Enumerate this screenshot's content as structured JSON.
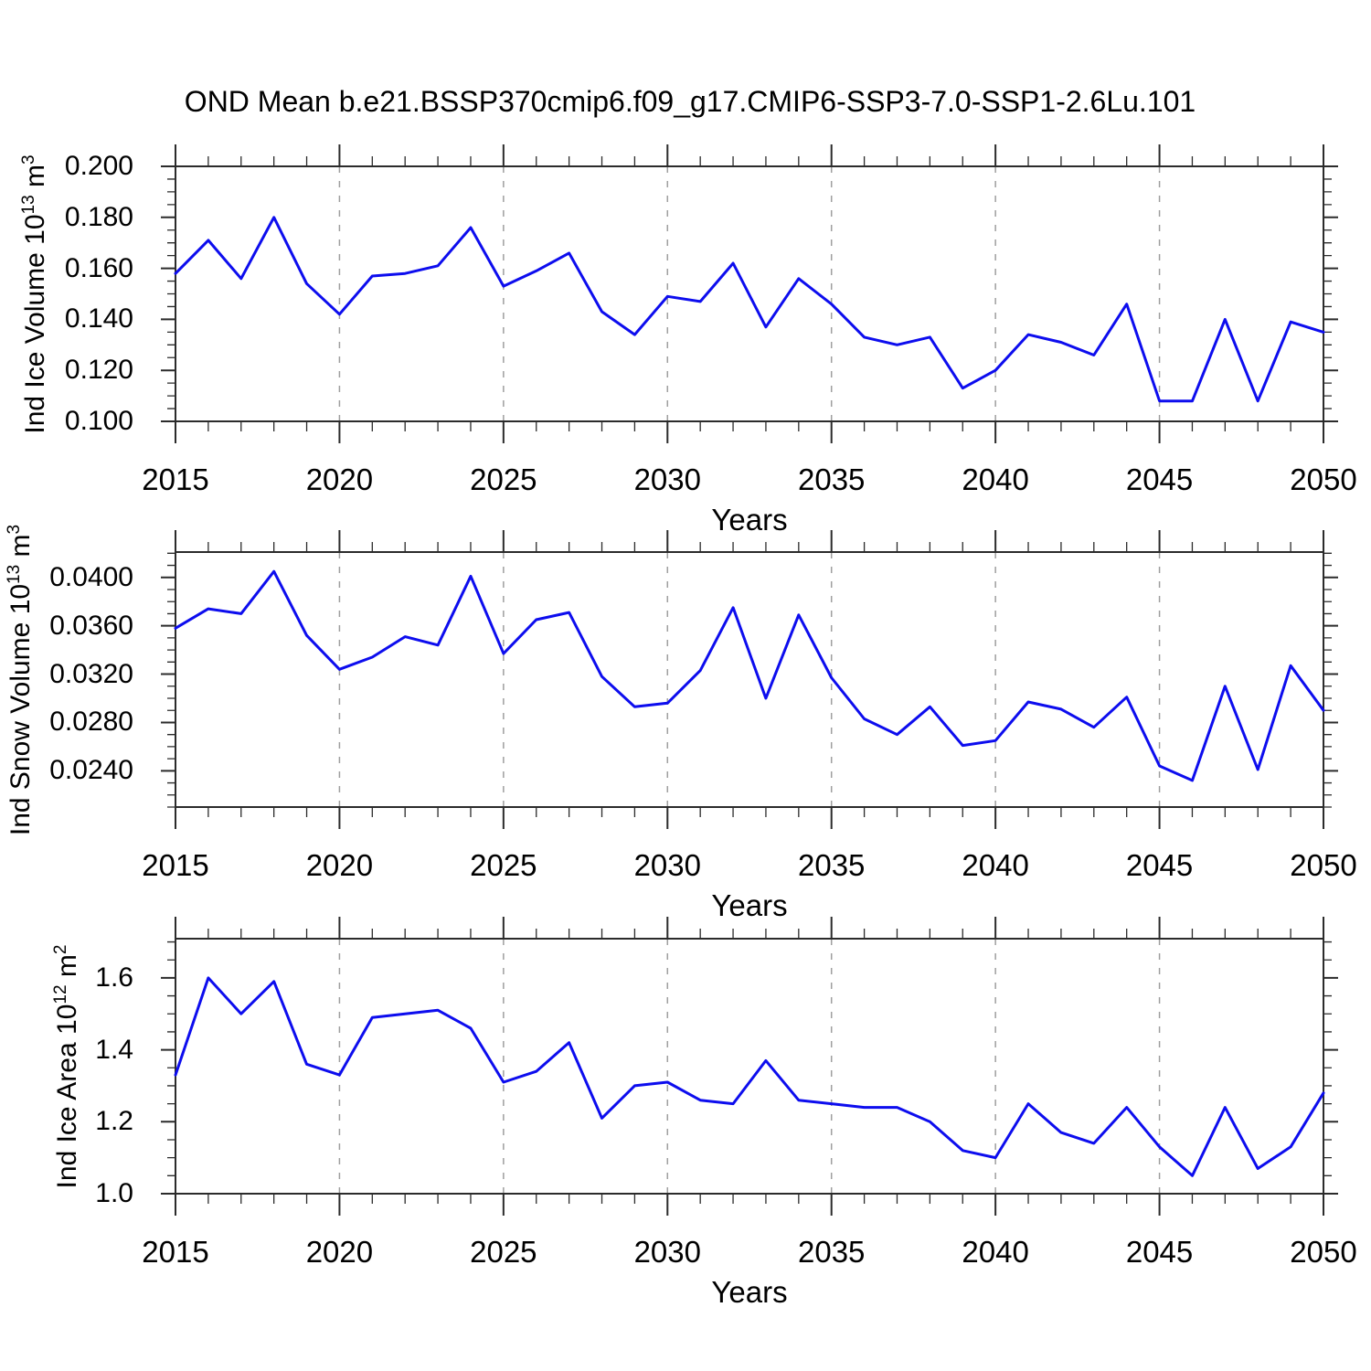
{
  "title": "OND Mean b.e21.BSSP370cmip6.f09_g17.CMIP6-SSP3-7.0-SSP1-2.6Lu.101",
  "colors": {
    "line": "#0d0dee",
    "axis": "#2b2b2b",
    "grid": "#9e9e9e",
    "text": "#000000",
    "background": "#ffffff"
  },
  "chart_data": [
    {
      "type": "line",
      "xlabel": "Years",
      "ylabel": "Ind Ice Volume 10^13 m^3",
      "ylabel_parts": {
        "base": "Ind Ice Volume 10",
        "sup1": "13",
        "mid": " m",
        "sup2": "3"
      },
      "years": [
        2015,
        2016,
        2017,
        2018,
        2019,
        2020,
        2021,
        2022,
        2023,
        2024,
        2025,
        2026,
        2027,
        2028,
        2029,
        2030,
        2031,
        2032,
        2033,
        2034,
        2035,
        2036,
        2037,
        2038,
        2039,
        2040,
        2041,
        2042,
        2043,
        2044,
        2045,
        2046,
        2047,
        2048,
        2049,
        2050
      ],
      "values": [
        0.158,
        0.171,
        0.156,
        0.18,
        0.154,
        0.142,
        0.157,
        0.158,
        0.161,
        0.176,
        0.153,
        0.159,
        0.166,
        0.143,
        0.134,
        0.149,
        0.147,
        0.162,
        0.137,
        0.156,
        0.146,
        0.133,
        0.13,
        0.133,
        0.113,
        0.12,
        0.134,
        0.131,
        0.126,
        0.146,
        0.108,
        0.108,
        0.14,
        0.108,
        0.139,
        0.135
      ],
      "ylim": [
        0.1,
        0.2
      ],
      "yticks_major": [
        0.1,
        0.12,
        0.14,
        0.16,
        0.18,
        0.2
      ],
      "ytick_labels": [
        "0.100",
        "0.120",
        "0.140",
        "0.160",
        "0.180",
        "0.200"
      ],
      "y_minor_step": 0.005,
      "xlim": [
        2015,
        2050
      ],
      "xticks_major": [
        2015,
        2020,
        2025,
        2030,
        2035,
        2040,
        2045,
        2050
      ],
      "xtick_labels": [
        "2015",
        "2020",
        "2025",
        "2030",
        "2035",
        "2040",
        "2045",
        "2050"
      ],
      "x_minor_step": 1,
      "grid_years": [
        2020,
        2025,
        2030,
        2035,
        2040,
        2045
      ],
      "grid_on": true,
      "legend": "none"
    },
    {
      "type": "line",
      "xlabel": "Years",
      "ylabel": "Ind Snow Volume 10^13 m^3",
      "ylabel_parts": {
        "base": "Ind Snow Volume 10",
        "sup1": "13",
        "mid": " m",
        "sup2": "3"
      },
      "years": [
        2015,
        2016,
        2017,
        2018,
        2019,
        2020,
        2021,
        2022,
        2023,
        2024,
        2025,
        2026,
        2027,
        2028,
        2029,
        2030,
        2031,
        2032,
        2033,
        2034,
        2035,
        2036,
        2037,
        2038,
        2039,
        2040,
        2041,
        2042,
        2043,
        2044,
        2045,
        2046,
        2047,
        2048,
        2049,
        2050
      ],
      "values": [
        0.0358,
        0.0374,
        0.037,
        0.0405,
        0.0352,
        0.0324,
        0.0334,
        0.0351,
        0.0344,
        0.0401,
        0.0337,
        0.0365,
        0.0371,
        0.0318,
        0.0293,
        0.0296,
        0.0323,
        0.0375,
        0.03,
        0.0369,
        0.0317,
        0.0283,
        0.027,
        0.0293,
        0.0261,
        0.0265,
        0.0297,
        0.0291,
        0.0276,
        0.0301,
        0.0244,
        0.0232,
        0.031,
        0.0241,
        0.0327,
        0.029
      ],
      "ylim": [
        0.021,
        0.0421
      ],
      "yticks_major": [
        0.024,
        0.028,
        0.032,
        0.036,
        0.04
      ],
      "ytick_labels": [
        "0.0240",
        "0.0280",
        "0.0320",
        "0.0360",
        "0.0400"
      ],
      "y_minor_step": 0.001,
      "xlim": [
        2015,
        2050
      ],
      "xticks_major": [
        2015,
        2020,
        2025,
        2030,
        2035,
        2040,
        2045,
        2050
      ],
      "xtick_labels": [
        "2015",
        "2020",
        "2025",
        "2030",
        "2035",
        "2040",
        "2045",
        "2050"
      ],
      "x_minor_step": 1,
      "grid_years": [
        2020,
        2025,
        2030,
        2035,
        2040,
        2045
      ],
      "grid_on": true,
      "legend": "none"
    },
    {
      "type": "line",
      "xlabel": "Years",
      "ylabel": "Ind Ice Area 10^12 m^2",
      "ylabel_parts": {
        "base": "Ind Ice Area 10",
        "sup1": "12",
        "mid": " m",
        "sup2": "2"
      },
      "years": [
        2015,
        2016,
        2017,
        2018,
        2019,
        2020,
        2021,
        2022,
        2023,
        2024,
        2025,
        2026,
        2027,
        2028,
        2029,
        2030,
        2031,
        2032,
        2033,
        2034,
        2035,
        2036,
        2037,
        2038,
        2039,
        2040,
        2041,
        2042,
        2043,
        2044,
        2045,
        2046,
        2047,
        2048,
        2049,
        2050
      ],
      "values": [
        1.33,
        1.6,
        1.5,
        1.59,
        1.36,
        1.33,
        1.49,
        1.5,
        1.51,
        1.46,
        1.31,
        1.34,
        1.42,
        1.21,
        1.3,
        1.31,
        1.26,
        1.25,
        1.37,
        1.26,
        1.25,
        1.24,
        1.24,
        1.2,
        1.12,
        1.1,
        1.25,
        1.17,
        1.14,
        1.24,
        1.13,
        1.05,
        1.24,
        1.07,
        1.13,
        1.28
      ],
      "ylim": [
        1.0,
        1.709
      ],
      "yticks_major": [
        1.0,
        1.2,
        1.4,
        1.6
      ],
      "ytick_labels": [
        "1.0",
        "1.2",
        "1.4",
        "1.6"
      ],
      "y_minor_step": 0.05,
      "xlim": [
        2015,
        2050
      ],
      "xticks_major": [
        2015,
        2020,
        2025,
        2030,
        2035,
        2040,
        2045,
        2050
      ],
      "xtick_labels": [
        "2015",
        "2020",
        "2025",
        "2030",
        "2035",
        "2040",
        "2045",
        "2050"
      ],
      "x_minor_step": 1,
      "grid_years": [
        2020,
        2025,
        2030,
        2035,
        2040,
        2045
      ],
      "grid_on": true,
      "legend": "none"
    }
  ]
}
